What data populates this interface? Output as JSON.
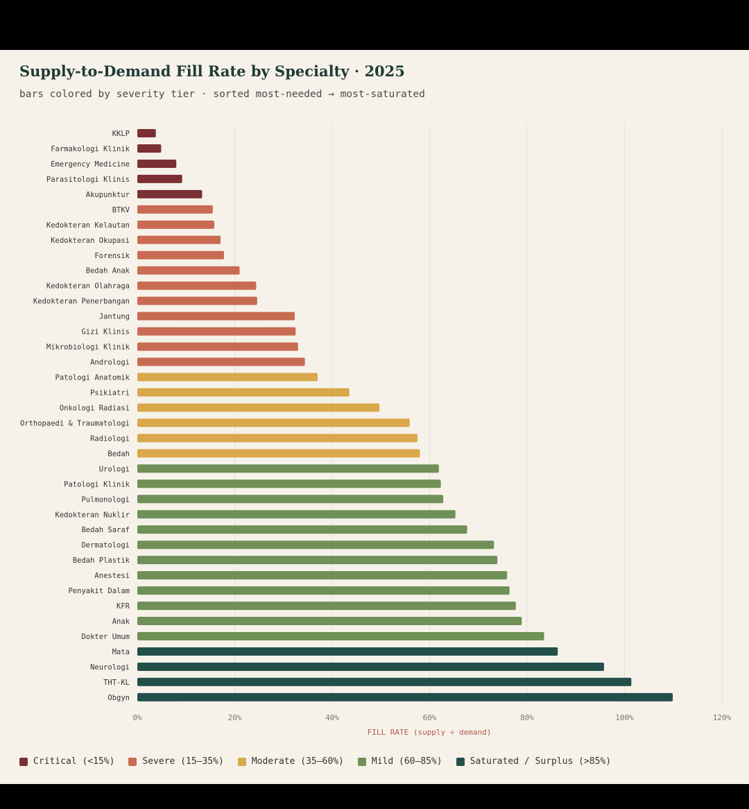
{
  "chart_data": {
    "type": "bar",
    "orientation": "horizontal",
    "title": "Supply-to-Demand Fill Rate by Specialty · 2025",
    "subtitle": "bars colored by severity tier · sorted most-needed → most-saturated",
    "xlabel": "FILL RATE (supply ÷ demand)",
    "ylabel": "",
    "xlim": [
      0,
      120
    ],
    "x_ticks": [
      "0%",
      "20%",
      "40%",
      "60%",
      "80%",
      "100%",
      "120%"
    ],
    "grid": "vertical",
    "legend_position": "bottom",
    "tiers": [
      {
        "name": "Critical (<15%)",
        "color": "#7b3035"
      },
      {
        "name": "Severe (15–35%)",
        "color": "#c96b52"
      },
      {
        "name": "Moderate (35–60%)",
        "color": "#d9a84a"
      },
      {
        "name": "Mild (60–85%)",
        "color": "#6f9056"
      },
      {
        "name": "Saturated / Surplus (>85%)",
        "color": "#234f4a"
      }
    ],
    "categories": [
      "KKLP",
      "Farmakologi Klinik",
      "Emergency Medicine",
      "Parasitologi Klinis",
      "Akupunktur",
      "BTKV",
      "Kedokteran Kelautan",
      "Kedokteran Okupasi",
      "Forensik",
      "Bedah Anak",
      "Kedokteran Olahraga",
      "Kedokteran Penerbangan",
      "Jantung",
      "Gizi Klinis",
      "Mikrobiologi Klinik",
      "Andrologi",
      "Patologi Anatomik",
      "Psikiatri",
      "Onkologi Radiasi",
      "Orthopaedi & Traumatologi",
      "Radiologi",
      "Bedah",
      "Urologi",
      "Patologi Klinik",
      "Pulmonologi",
      "Kedokteran Nuklir",
      "Bedah Saraf",
      "Dermatologi",
      "Bedah Plastik",
      "Anestesi",
      "Penyakit Dalam",
      "KFR",
      "Anak",
      "Dokter Umum",
      "Mata",
      "Neurologi",
      "THT-KL",
      "Obgyn"
    ],
    "values": [
      3.8,
      4.9,
      8.0,
      9.2,
      13.3,
      15.5,
      15.8,
      17.1,
      17.8,
      21.0,
      24.4,
      24.6,
      32.3,
      32.5,
      33.0,
      34.4,
      37.0,
      43.5,
      49.7,
      55.9,
      57.5,
      58.0,
      61.9,
      62.3,
      62.8,
      65.3,
      67.7,
      73.2,
      73.9,
      75.9,
      76.4,
      77.7,
      78.9,
      83.5,
      86.3,
      95.8,
      101.4,
      109.9
    ],
    "tier_index": [
      0,
      0,
      0,
      0,
      0,
      1,
      1,
      1,
      1,
      1,
      1,
      1,
      1,
      1,
      1,
      1,
      2,
      2,
      2,
      2,
      2,
      2,
      3,
      3,
      3,
      3,
      3,
      3,
      3,
      3,
      3,
      3,
      3,
      3,
      4,
      4,
      4,
      4
    ]
  }
}
